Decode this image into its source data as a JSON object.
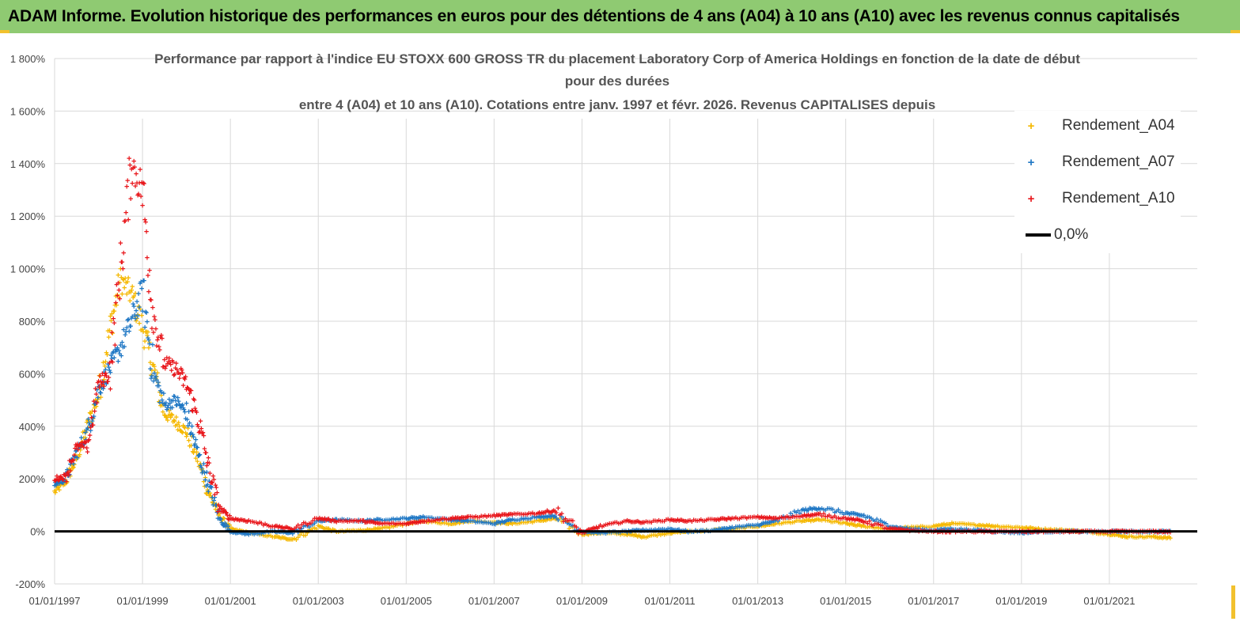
{
  "banner": {
    "title": "ADAM Informe. Evolution historique des performances en euros pour des détentions de 4 ans (A04) à 10 ans (A10) avec les revenus connus capitalisés"
  },
  "chart_data": {
    "type": "scatter",
    "title_lines": [
      "Performance par rapport à l'indice EU STOXX 600 GROSS TR  du placement Laboratory Corp of America Holdings en fonction de la date de début",
      "pour des durées",
      "entre 4 (A04) et 10 ans (A10). Cotations entre janv. 1997 et févr. 2026. Revenus CAPITALISES depuis"
    ],
    "x_tick_labels": [
      "01/01/1997",
      "01/01/1999",
      "01/01/2001",
      "01/01/2003",
      "01/01/2005",
      "01/01/2007",
      "01/01/2009",
      "01/01/2011",
      "01/01/2013",
      "01/01/2015",
      "01/01/2017",
      "01/01/2019",
      "01/01/2021"
    ],
    "y_tick_labels": [
      "1 800%",
      "1 600%",
      "1 400%",
      "1 200%",
      "1 000%",
      "800%",
      "600%",
      "400%",
      "200%",
      "0%",
      "-200%"
    ],
    "xlim": [
      "1997-01-01",
      "2023-01-01"
    ],
    "ylim": [
      -200,
      1800
    ],
    "grid": true,
    "legend_position": "top-right",
    "series": [
      {
        "name": "Rendement_A04",
        "color": "#f5b800",
        "points": [
          [
            "1997-01",
            150
          ],
          [
            "1997-04",
            190
          ],
          [
            "1997-07",
            280
          ],
          [
            "1997-10",
            400
          ],
          [
            "1998-01",
            520
          ],
          [
            "1998-04",
            760
          ],
          [
            "1998-07",
            960
          ],
          [
            "1998-10",
            900
          ],
          [
            "1999-01",
            780
          ],
          [
            "1999-04",
            620
          ],
          [
            "1999-07",
            450
          ],
          [
            "1999-10",
            420
          ],
          [
            "2000-01",
            380
          ],
          [
            "2000-04",
            280
          ],
          [
            "2000-07",
            150
          ],
          [
            "2000-10",
            60
          ],
          [
            "2001-01",
            10
          ],
          [
            "2001-06",
            -5
          ],
          [
            "2002-01",
            -20
          ],
          [
            "2002-06",
            -30
          ],
          [
            "2003-01",
            20
          ],
          [
            "2003-06",
            0
          ],
          [
            "2004-01",
            5
          ],
          [
            "2004-06",
            10
          ],
          [
            "2005-01",
            30
          ],
          [
            "2005-06",
            40
          ],
          [
            "2006-01",
            30
          ],
          [
            "2006-06",
            40
          ],
          [
            "2007-01",
            35
          ],
          [
            "2007-06",
            30
          ],
          [
            "2008-01",
            40
          ],
          [
            "2008-06",
            50
          ],
          [
            "2009-01",
            -10
          ],
          [
            "2009-06",
            -5
          ],
          [
            "2010-01",
            -10
          ],
          [
            "2010-06",
            -20
          ],
          [
            "2011-01",
            -5
          ],
          [
            "2011-06",
            0
          ],
          [
            "2012-01",
            5
          ],
          [
            "2012-06",
            10
          ],
          [
            "2013-01",
            20
          ],
          [
            "2013-06",
            30
          ],
          [
            "2014-01",
            40
          ],
          [
            "2014-06",
            45
          ],
          [
            "2015-01",
            30
          ],
          [
            "2015-06",
            20
          ],
          [
            "2016-01",
            10
          ],
          [
            "2016-06",
            15
          ],
          [
            "2017-01",
            20
          ],
          [
            "2017-06",
            30
          ],
          [
            "2018-01",
            25
          ],
          [
            "2018-06",
            20
          ],
          [
            "2019-01",
            15
          ],
          [
            "2019-06",
            10
          ],
          [
            "2020-01",
            5
          ],
          [
            "2020-06",
            0
          ],
          [
            "2021-01",
            -10
          ],
          [
            "2021-06",
            -20
          ],
          [
            "2022-01",
            -20
          ],
          [
            "2022-06",
            -25
          ]
        ]
      },
      {
        "name": "Rendement_A07",
        "color": "#1f77c4",
        "points": [
          [
            "1997-01",
            180
          ],
          [
            "1997-04",
            200
          ],
          [
            "1997-07",
            300
          ],
          [
            "1997-10",
            380
          ],
          [
            "1998-01",
            540
          ],
          [
            "1998-04",
            620
          ],
          [
            "1998-07",
            700
          ],
          [
            "1998-10",
            800
          ],
          [
            "1999-01",
            920
          ],
          [
            "1999-04",
            600
          ],
          [
            "1999-07",
            480
          ],
          [
            "1999-10",
            500
          ],
          [
            "2000-01",
            450
          ],
          [
            "2000-04",
            300
          ],
          [
            "2000-07",
            180
          ],
          [
            "2000-10",
            50
          ],
          [
            "2001-01",
            0
          ],
          [
            "2001-06",
            -10
          ],
          [
            "2002-01",
            0
          ],
          [
            "2002-06",
            -5
          ],
          [
            "2003-01",
            40
          ],
          [
            "2003-06",
            45
          ],
          [
            "2004-01",
            40
          ],
          [
            "2004-06",
            45
          ],
          [
            "2005-01",
            50
          ],
          [
            "2005-06",
            55
          ],
          [
            "2006-01",
            45
          ],
          [
            "2006-06",
            40
          ],
          [
            "2007-01",
            30
          ],
          [
            "2007-06",
            45
          ],
          [
            "2008-01",
            55
          ],
          [
            "2008-06",
            60
          ],
          [
            "2009-01",
            0
          ],
          [
            "2009-06",
            -5
          ],
          [
            "2010-01",
            0
          ],
          [
            "2010-06",
            5
          ],
          [
            "2011-01",
            10
          ],
          [
            "2011-06",
            0
          ],
          [
            "2012-01",
            5
          ],
          [
            "2012-06",
            15
          ],
          [
            "2013-01",
            25
          ],
          [
            "2013-06",
            40
          ],
          [
            "2014-01",
            80
          ],
          [
            "2014-06",
            90
          ],
          [
            "2015-01",
            70
          ],
          [
            "2015-06",
            60
          ],
          [
            "2016-01",
            20
          ],
          [
            "2016-06",
            10
          ],
          [
            "2017-01",
            5
          ],
          [
            "2017-06",
            10
          ],
          [
            "2018-01",
            5
          ],
          [
            "2018-06",
            0
          ],
          [
            "2019-01",
            -5
          ],
          [
            "2019-06",
            0
          ],
          [
            "2020-01",
            0
          ],
          [
            "2020-06",
            0
          ],
          [
            "2021-01",
            0
          ],
          [
            "2021-06",
            0
          ],
          [
            "2022-01",
            0
          ],
          [
            "2022-06",
            0
          ]
        ]
      },
      {
        "name": "Rendement_A10",
        "color": "#e8161b",
        "points": [
          [
            "1997-01",
            200
          ],
          [
            "1997-04",
            210
          ],
          [
            "1997-07",
            320
          ],
          [
            "1997-10",
            330
          ],
          [
            "1998-01",
            560
          ],
          [
            "1998-04",
            600
          ],
          [
            "1998-07",
            1000
          ],
          [
            "1998-10",
            1400
          ],
          [
            "1999-01",
            1300
          ],
          [
            "1999-04",
            820
          ],
          [
            "1999-07",
            640
          ],
          [
            "1999-10",
            620
          ],
          [
            "2000-01",
            560
          ],
          [
            "2000-04",
            440
          ],
          [
            "2000-07",
            250
          ],
          [
            "2000-10",
            90
          ],
          [
            "2001-01",
            50
          ],
          [
            "2001-06",
            40
          ],
          [
            "2002-01",
            20
          ],
          [
            "2002-06",
            10
          ],
          [
            "2003-01",
            50
          ],
          [
            "2003-06",
            40
          ],
          [
            "2004-01",
            40
          ],
          [
            "2004-06",
            30
          ],
          [
            "2005-01",
            30
          ],
          [
            "2005-06",
            40
          ],
          [
            "2006-01",
            50
          ],
          [
            "2006-06",
            55
          ],
          [
            "2007-01",
            60
          ],
          [
            "2007-06",
            65
          ],
          [
            "2008-01",
            70
          ],
          [
            "2008-06",
            80
          ],
          [
            "2009-01",
            -5
          ],
          [
            "2009-06",
            20
          ],
          [
            "2010-01",
            40
          ],
          [
            "2010-06",
            35
          ],
          [
            "2011-01",
            45
          ],
          [
            "2011-06",
            40
          ],
          [
            "2012-01",
            45
          ],
          [
            "2012-06",
            50
          ],
          [
            "2013-01",
            55
          ],
          [
            "2013-06",
            50
          ],
          [
            "2014-01",
            60
          ],
          [
            "2014-06",
            65
          ],
          [
            "2015-01",
            50
          ],
          [
            "2015-06",
            40
          ],
          [
            "2016-01",
            10
          ],
          [
            "2016-06",
            5
          ],
          [
            "2017-01",
            0
          ],
          [
            "2017-06",
            0
          ],
          [
            "2018-01",
            0
          ],
          [
            "2018-06",
            0
          ],
          [
            "2019-01",
            0
          ],
          [
            "2019-06",
            0
          ],
          [
            "2020-01",
            0
          ],
          [
            "2020-06",
            0
          ],
          [
            "2021-01",
            0
          ],
          [
            "2021-06",
            0
          ],
          [
            "2022-01",
            0
          ],
          [
            "2022-06",
            0
          ]
        ]
      },
      {
        "name": "0,0%",
        "color": "#000000",
        "line": true,
        "points": [
          [
            "1997-01",
            0
          ],
          [
            "2023-01",
            0
          ]
        ]
      }
    ]
  }
}
